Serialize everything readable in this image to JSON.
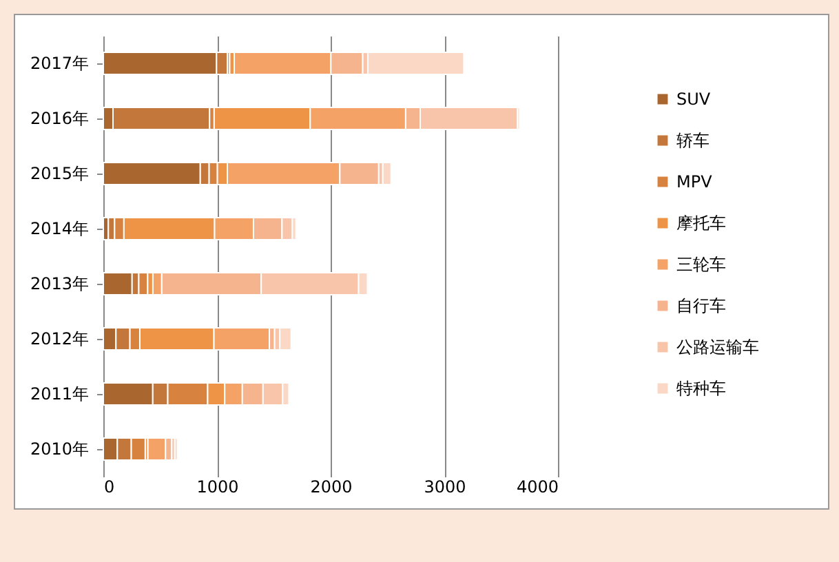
{
  "chart_data": {
    "type": "bar",
    "orientation": "horizontal",
    "stacked": true,
    "categories": [
      "2017年",
      "2016年",
      "2015年",
      "2014年",
      "2013年",
      "2012年",
      "2011年",
      "2010年"
    ],
    "series": [
      {
        "name": "SUV",
        "color": "#a9672f",
        "values": [
          996,
          85,
          853,
          44,
          253,
          111,
          435,
          123
        ]
      },
      {
        "name": "轿车",
        "color": "#c4773a",
        "values": [
          96,
          850,
          78,
          55,
          59,
          123,
          132,
          123
        ]
      },
      {
        "name": "MPV",
        "color": "#d7833f",
        "values": [
          20,
          40,
          73,
          82,
          78,
          87,
          351,
          123
        ]
      },
      {
        "name": "摩托车",
        "color": "#ed9447",
        "values": [
          40,
          845,
          87,
          798,
          46,
          652,
          150,
          23
        ]
      },
      {
        "name": "三轮车",
        "color": "#f4a266",
        "values": [
          850,
          840,
          990,
          342,
          78,
          488,
          155,
          155
        ]
      },
      {
        "name": "自行车",
        "color": "#f6b48e",
        "values": [
          280,
          128,
          342,
          251,
          875,
          46,
          182,
          55
        ]
      },
      {
        "name": "公路运输车",
        "color": "#f8c5aa",
        "values": [
          45,
          857,
          36,
          91,
          857,
          46,
          173,
          27
        ]
      },
      {
        "name": "特种车",
        "color": "#fbd7c5",
        "values": [
          845,
          18,
          73,
          32,
          78,
          100,
          55,
          23
        ]
      }
    ],
    "xlim": [
      0,
      4000
    ],
    "xticks": [
      0,
      1000,
      2000,
      3000,
      4000
    ],
    "grid": "x",
    "legend": "right"
  }
}
